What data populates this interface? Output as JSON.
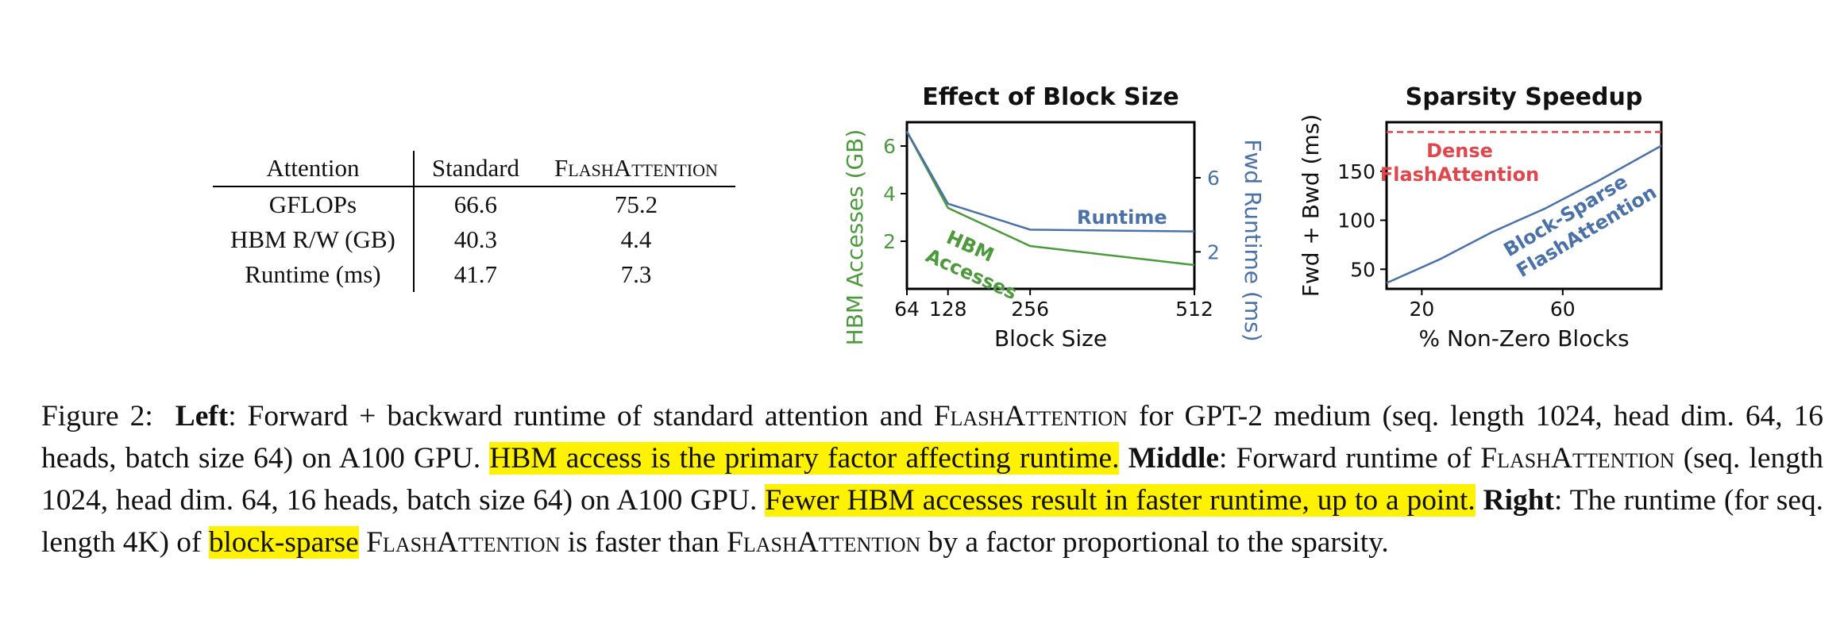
{
  "table": {
    "headers": [
      "Attention",
      "Standard",
      "FlashAttention"
    ],
    "rows": [
      [
        "GFLOPs",
        "66.6",
        "75.2"
      ],
      [
        "HBM R/W (GB)",
        "40.3",
        "4.4"
      ],
      [
        "Runtime (ms)",
        "41.7",
        "7.3"
      ]
    ]
  },
  "colors": {
    "hbm_green": "#4c9a3c",
    "runtime_blue": "#4a72a8",
    "dense_red": "#e0464b",
    "highlight": "#fff200"
  },
  "chart_data": [
    {
      "type": "line",
      "title": "Effect of Block Size",
      "xlabel": "Block Size",
      "ylabel_left": "HBM Accesses (GB)",
      "ylabel_right": "Fwd Runtime (ms)",
      "x_ticks": [
        "64",
        "128",
        "256",
        "512"
      ],
      "y_left_ticks": [
        "2",
        "4",
        "6"
      ],
      "y_right_ticks": [
        "2",
        "6"
      ],
      "xlim": [
        64,
        512
      ],
      "ylim_left": [
        0,
        7
      ],
      "ylim_right": [
        0,
        9
      ],
      "x": [
        64,
        128,
        256,
        512
      ],
      "series": [
        {
          "name": "HBM Accesses",
          "label_line1": "HBM",
          "label_line2": "Accesses",
          "axis": "left",
          "values": [
            6.6,
            3.4,
            1.8,
            1.0
          ]
        },
        {
          "name": "Runtime",
          "label_line1": "Runtime",
          "axis": "right",
          "values": [
            8.5,
            4.6,
            3.2,
            3.1
          ]
        }
      ]
    },
    {
      "type": "line",
      "title": "Sparsity Speedup",
      "xlabel": "% Non-Zero Blocks",
      "ylabel": "Fwd + Bwd (ms)",
      "x_ticks": [
        "20",
        "60"
      ],
      "y_ticks": [
        "50",
        "100",
        "150"
      ],
      "xlim": [
        10,
        88
      ],
      "ylim": [
        30,
        200
      ],
      "series": [
        {
          "name": "Dense FlashAttention",
          "label_line1": "Dense",
          "label_line2": "FlashAttention",
          "style": "dashed",
          "x": [
            10,
            88
          ],
          "values": [
            190,
            190
          ]
        },
        {
          "name": "Block-Sparse FlashAttention",
          "label_line1": "Block-Sparse",
          "label_line2": "FlashAttention",
          "x": [
            10,
            25,
            40,
            55,
            70,
            88
          ],
          "values": [
            36,
            60,
            88,
            112,
            140,
            176
          ]
        }
      ]
    }
  ],
  "caption": {
    "fig": "Figure 2:",
    "left_label": "Left",
    "t1": ": Forward + backward runtime of standard attention and ",
    "fa1": "FlashAttention",
    "t2": " for GPT-2 medium (seq. length 1024, head dim. 64, 16 heads, batch size 64) on A100 GPU. ",
    "h1": "HBM access is the primary factor affecting runtime.",
    "middle_label": "Middle",
    "t3": ": Forward runtime of ",
    "fa2": "FlashAttention",
    "t4": " (seq. length 1024, head dim. 64, 16 heads, batch size 64) on A100 GPU. ",
    "h2": "Fewer HBM accesses result in faster runtime, up to a point.",
    "right_label": "Right",
    "t5": ": The runtime (for seq. length 4K) of ",
    "h3": "block-sparse",
    "fa3": "FlashAttention",
    "t6": " is faster than ",
    "fa4": "FlashAttention",
    "t7": " by a factor proportional to the sparsity."
  }
}
